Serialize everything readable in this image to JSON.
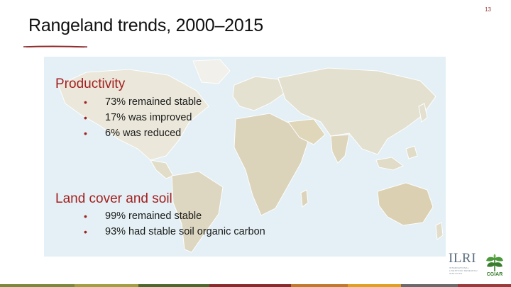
{
  "slide": {
    "number": "13",
    "title": "Rangeland trends, 2000–2015"
  },
  "sections": [
    {
      "heading": "Productivity",
      "bullets": [
        "73% remained stable",
        "17% was improved",
        "6% was reduced"
      ]
    },
    {
      "heading": "Land cover and soil",
      "bullets": [
        "99% remained stable",
        "93% had stable soil organic carbon"
      ]
    }
  ],
  "logos": {
    "ilri": "ILRI",
    "ilri_tagline": "INTERNATIONAL LIVESTOCK RESEARCH INSTITUTE",
    "cgiar": "CGIAR"
  },
  "colors": {
    "accent": "#a32020",
    "map_water": "#e4f0f5",
    "map_land": "#d9d4c2",
    "footer": [
      "#7a8a3a",
      "#a0a040",
      "#4a6a2a",
      "#8a2a2a",
      "#c07a2a",
      "#e0a020",
      "#6a6a6a",
      "#9a3a3a"
    ]
  }
}
